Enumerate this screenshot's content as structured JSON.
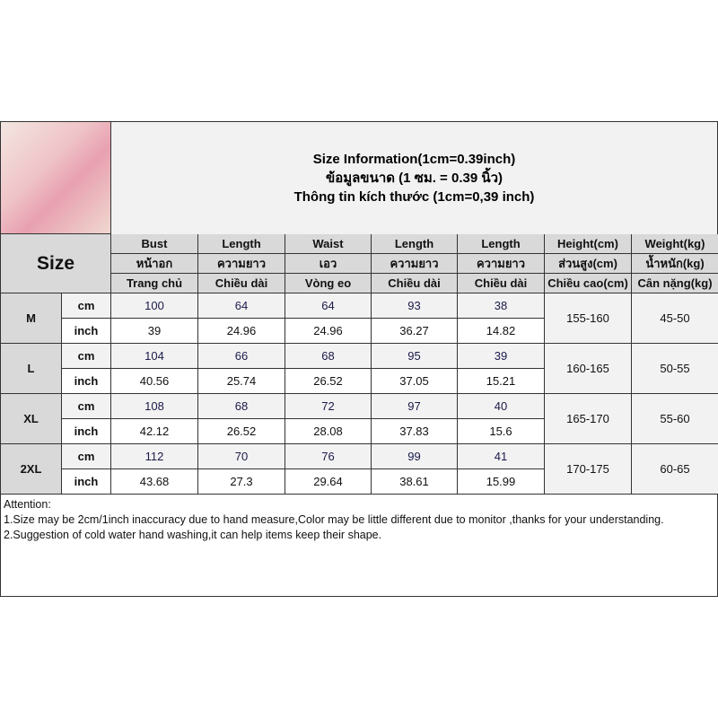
{
  "title": [
    "Size Information(1cm=0.39inch)",
    "ข้อมูลขนาด (1 ซม. = 0.39 นิ้ว)",
    "Thông tin kích thước (1cm=0,39 inch)"
  ],
  "size_label": "Size",
  "columns": [
    [
      "Bust",
      "หน้าอก",
      "Trang chủ"
    ],
    [
      "Length",
      "ความยาว",
      "Chiều dài"
    ],
    [
      "Waist",
      "เอว",
      "Vòng eo"
    ],
    [
      "Length",
      "ความยาว",
      "Chiều dài"
    ],
    [
      "Length",
      "ความยาว",
      "Chiều dài"
    ],
    [
      "Height(cm)",
      "ส่วนสูง(cm)",
      "Chiều cao(cm)"
    ],
    [
      "Weight(kg)",
      "น้ำหนัก(kg)",
      "Cân nặng(kg)"
    ]
  ],
  "rows": [
    {
      "size": "M",
      "cm_label": "cm",
      "inch_label": "inch",
      "cm": [
        "100",
        "64",
        "64",
        "93",
        "38"
      ],
      "inch": [
        "39",
        "24.96",
        "24.96",
        "36.27",
        "14.82"
      ],
      "height": "155-160",
      "weight": "45-50"
    },
    {
      "size": "L",
      "cm_label": "cm",
      "inch_label": "inch",
      "cm": [
        "104",
        "66",
        "68",
        "95",
        "39"
      ],
      "inch": [
        "40.56",
        "25.74",
        "26.52",
        "37.05",
        "15.21"
      ],
      "height": "160-165",
      "weight": "50-55"
    },
    {
      "size": "XL",
      "cm_label": "cm",
      "inch_label": "inch",
      "cm": [
        "108",
        "68",
        "72",
        "97",
        "40"
      ],
      "inch": [
        "42.12",
        "26.52",
        "28.08",
        "37.83",
        "15.6"
      ],
      "height": "165-170",
      "weight": "55-60"
    },
    {
      "size": "2XL",
      "cm_label": "cm",
      "inch_label": "inch",
      "cm": [
        "112",
        "70",
        "76",
        "99",
        "41"
      ],
      "inch": [
        "43.68",
        "27.3",
        "29.64",
        "38.61",
        "15.99"
      ],
      "height": "170-175",
      "weight": "60-65"
    }
  ],
  "attention": [
    "Attention:",
    "1.Size may be 2cm/1inch inaccuracy due to hand measure,Color may be little different due to monitor ,thanks for your understanding.",
    "2.Suggestion of cold water hand washing,it can help items keep their shape."
  ]
}
